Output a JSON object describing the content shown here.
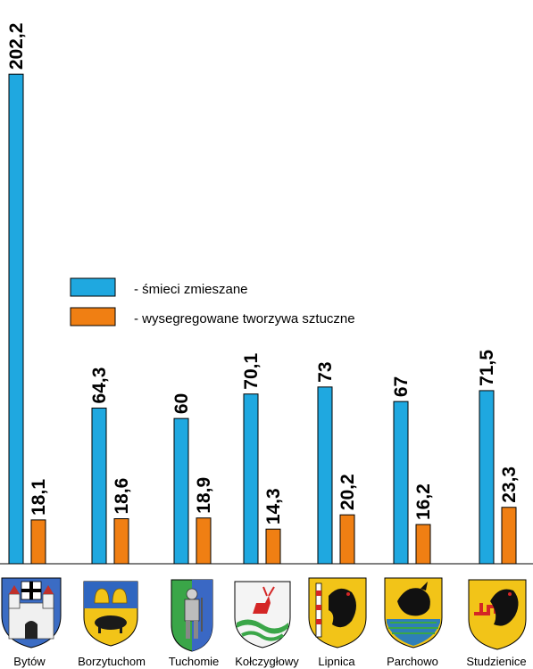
{
  "chart_data": {
    "type": "bar",
    "categories": [
      "Bytów",
      "Borzytuchom",
      "Tuchomie",
      "Kołczygłowy",
      "Lipnica",
      "Parchowo",
      "Studzienice"
    ],
    "series": [
      {
        "name": "- śmieci zmieszane",
        "color": "#1fa8e0",
        "values": [
          "202,2",
          "64,3",
          "60",
          "70,1",
          "73",
          "67",
          "71,5"
        ]
      },
      {
        "name": "- wysegregowane tworzywa sztuczne",
        "color": "#f07f13",
        "values": [
          "18,1",
          "18,6",
          "18,9",
          "14,3",
          "20,2",
          "16,2",
          "23,3"
        ]
      }
    ],
    "ylim": [
      0,
      210
    ],
    "grid": false,
    "legend": "center-left",
    "data_labels": "rotated, above bars"
  },
  "coats_of_arms": [
    "Bytów coat of arms",
    "Borzytuchom coat of arms",
    "Tuchomie coat of arms",
    "Kołczygłowy coat of arms",
    "Lipnica coat of arms",
    "Parchowo coat of arms",
    "Studzienice coat of arms"
  ]
}
